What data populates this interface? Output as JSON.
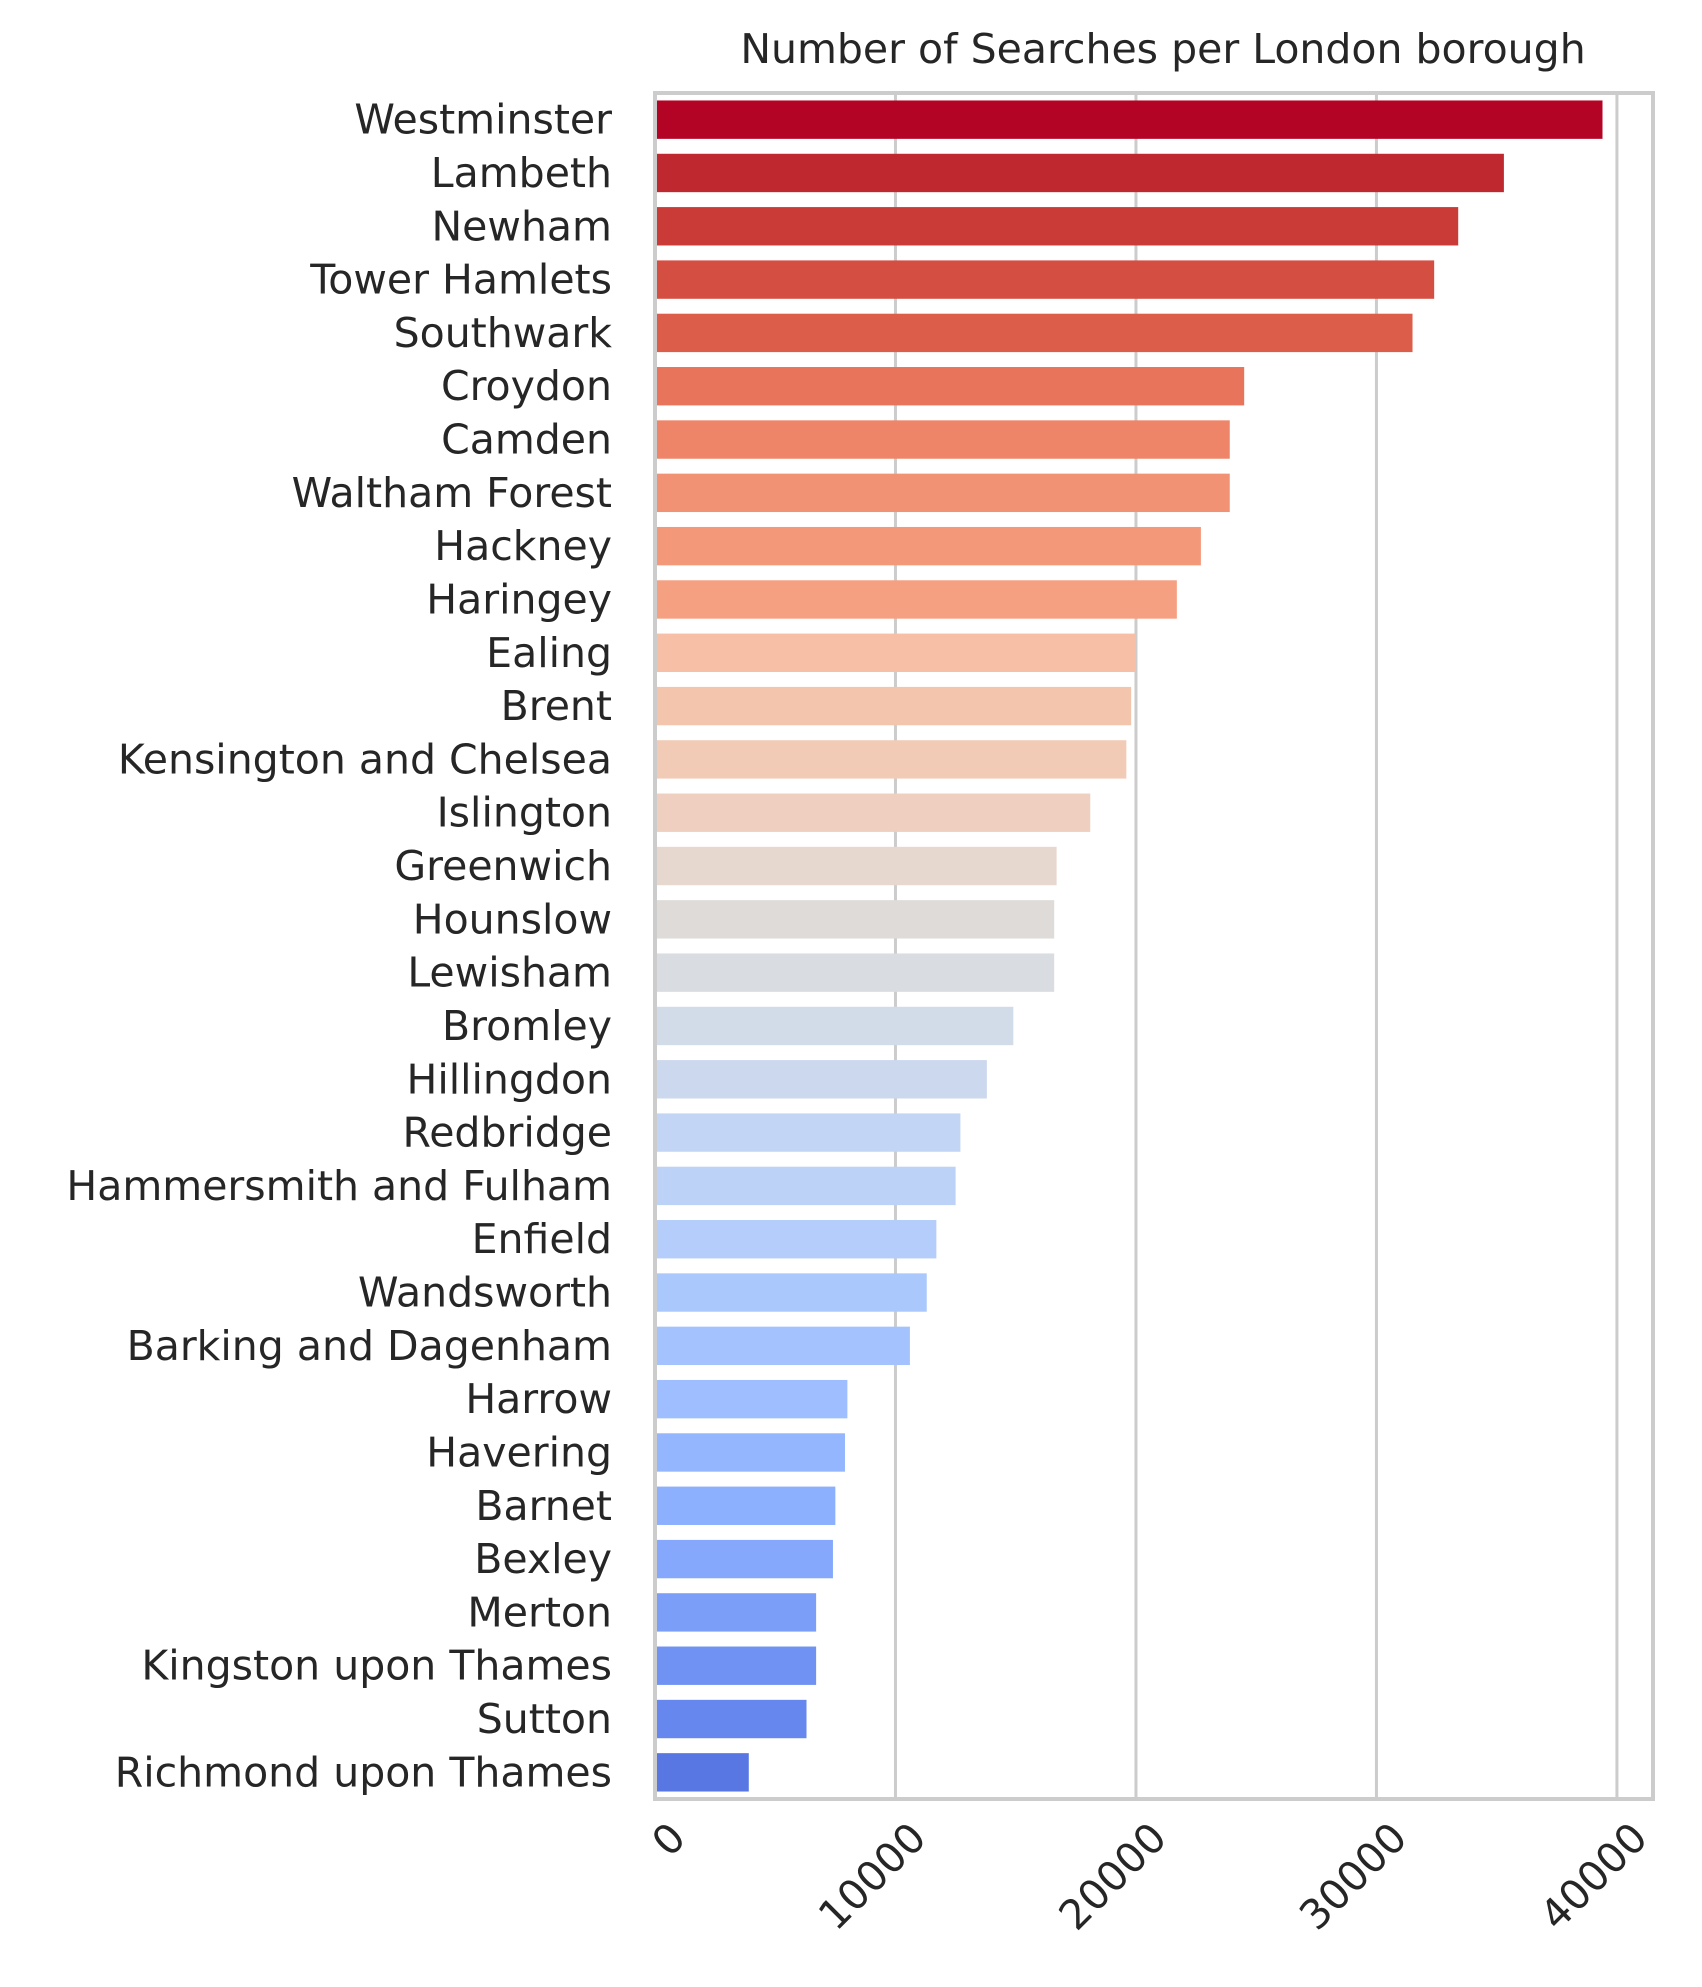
{
  "chart_data": {
    "type": "bar",
    "orientation": "horizontal",
    "title": "Number of Searches per London borough",
    "xlabel": "",
    "ylabel": "",
    "xlim": [
      0,
      41500
    ],
    "xticks": [
      0,
      10000,
      20000,
      30000,
      40000
    ],
    "grid": true,
    "categories": [
      "Westminster",
      "Lambeth",
      "Newham",
      "Tower Hamlets",
      "Southwark",
      "Croydon",
      "Camden",
      "Waltham Forest",
      "Hackney",
      "Haringey",
      "Ealing",
      "Brent",
      "Kensington and Chelsea",
      "Islington",
      "Greenwich",
      "Hounslow",
      "Lewisham",
      "Bromley",
      "Hillingdon",
      "Redbridge",
      "Hammersmith and Fulham",
      "Enfield",
      "Wandsworth",
      "Barking and Dagenham",
      "Harrow",
      "Havering",
      "Barnet",
      "Bexley",
      "Merton",
      "Kingston upon Thames",
      "Sutton",
      "Richmond upon Thames"
    ],
    "values": [
      39400,
      35300,
      33400,
      32400,
      31500,
      24500,
      23900,
      23900,
      22700,
      21700,
      20000,
      19800,
      19600,
      18100,
      16700,
      16600,
      16600,
      14900,
      13800,
      12700,
      12500,
      11700,
      11300,
      10600,
      8000,
      7900,
      7500,
      7400,
      6700,
      6700,
      6300,
      3900
    ],
    "colors": [
      "#b40426",
      "#c0282f",
      "#ca3b37",
      "#d44e41",
      "#dc5d4a",
      "#e7745b",
      "#ee8468",
      "#f29274",
      "#f4987a",
      "#f5a081",
      "#f6bfa6",
      "#f4c5ad",
      "#f2cbb7",
      "#efcfbf",
      "#e6d7cf",
      "#dfdbd9",
      "#d9dce1",
      "#d2dbe8",
      "#cbd8ee",
      "#c3d5f4",
      "#bcd2f7",
      "#b5cdfa",
      "#abc8fd",
      "#a3c2fe",
      "#9ebeff",
      "#94b6ff",
      "#8db0fe",
      "#85a8fc",
      "#7b9ff9",
      "#6f92f3",
      "#6687ed",
      "#5977e3"
    ]
  }
}
